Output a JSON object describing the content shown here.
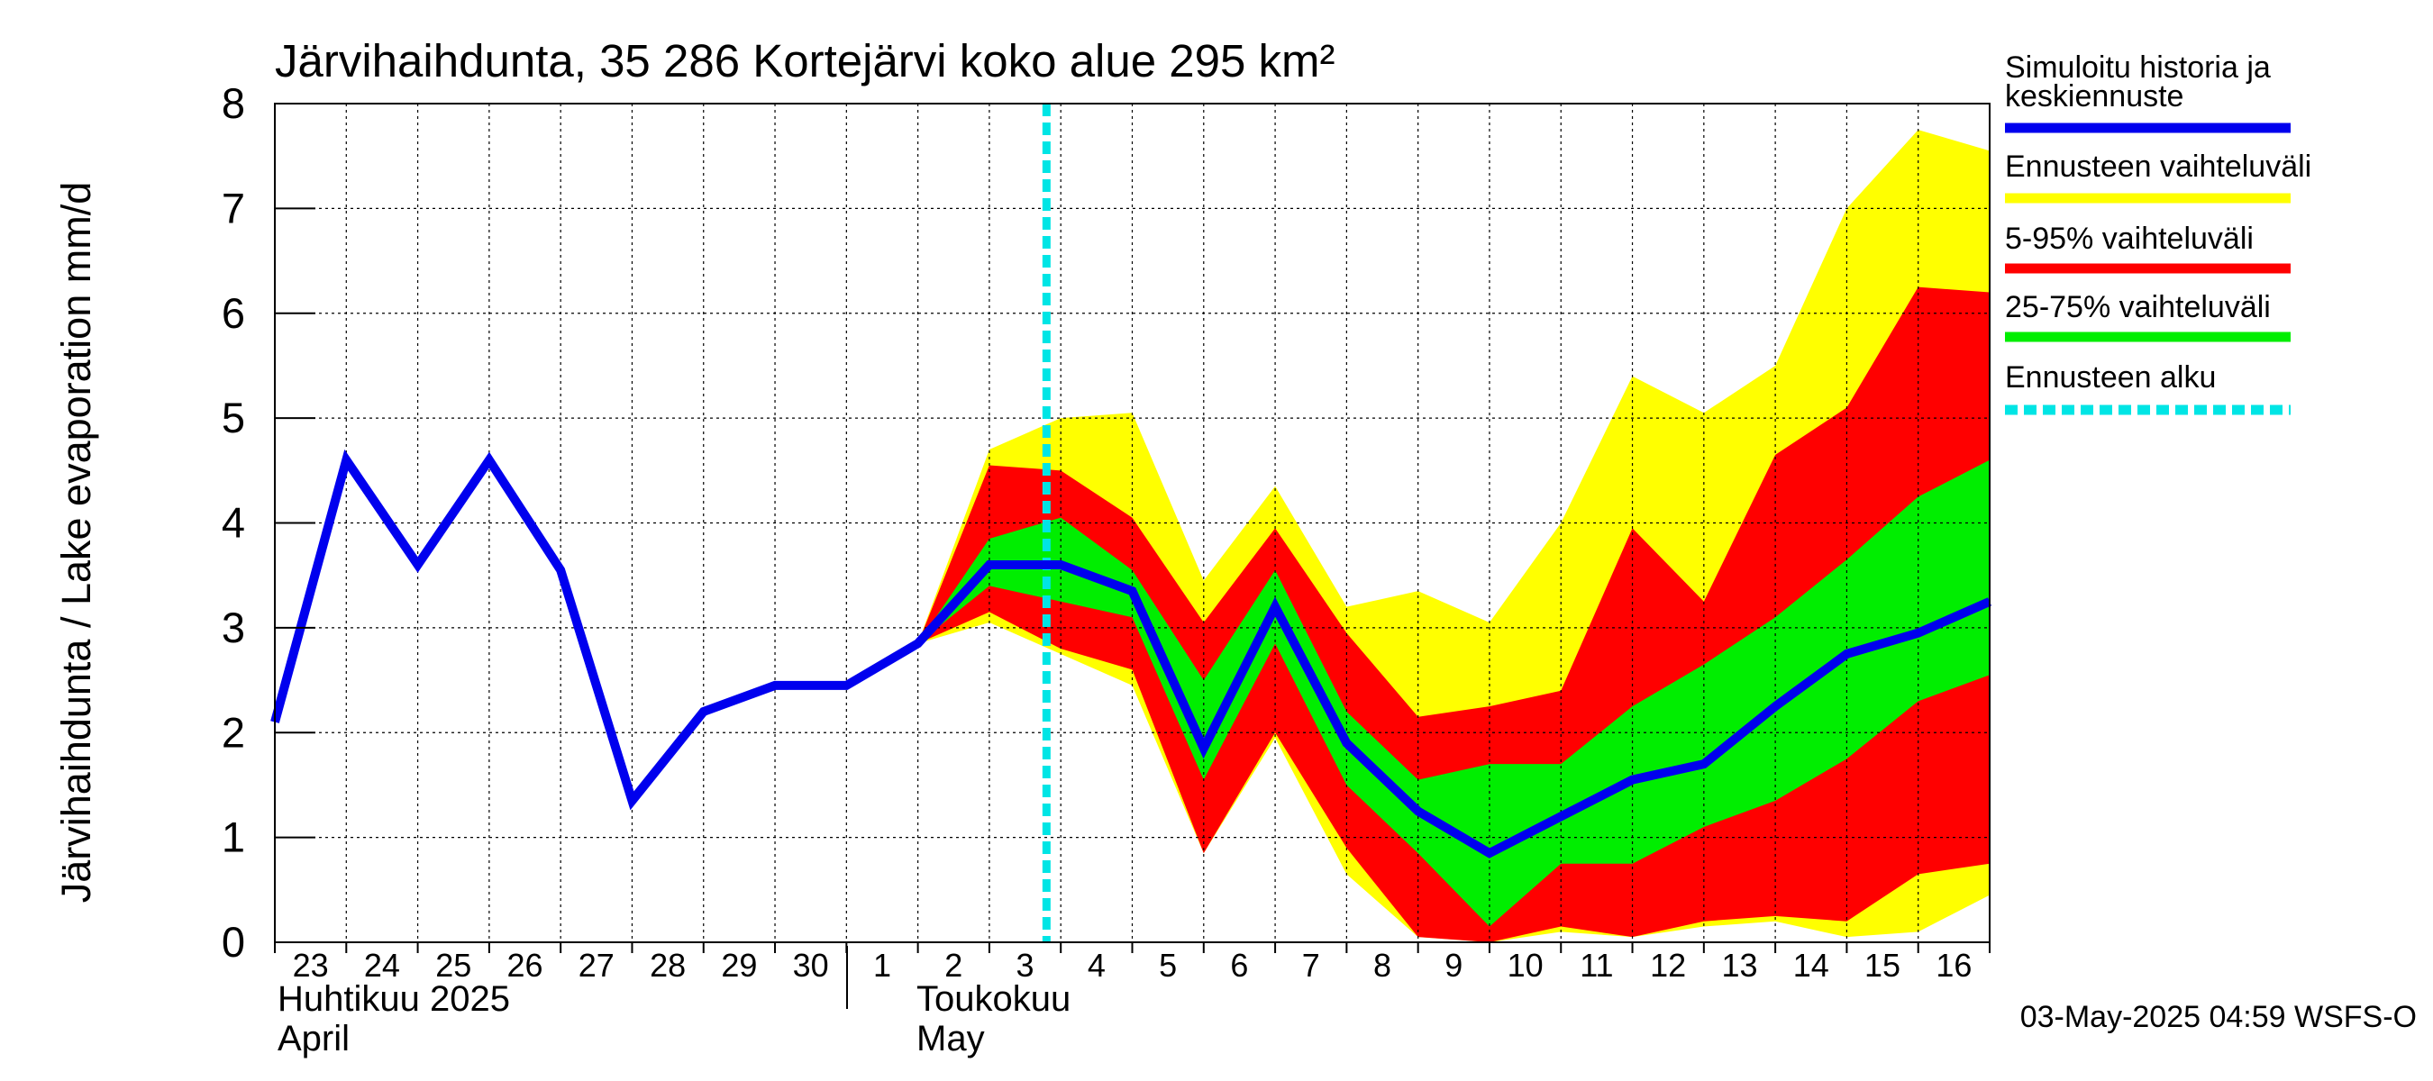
{
  "chart_data": {
    "type": "area",
    "title": "Järvihaihdunta, 35 286 Kortejärvi koko alue 295 km²",
    "ylabel": "Järvihaihdunta / Lake evaporation   mm/d",
    "ylim": [
      0,
      8
    ],
    "yticks": [
      "0",
      "1",
      "2",
      "3",
      "4",
      "5",
      "6",
      "7",
      "8"
    ],
    "x_day_labels": [
      "23",
      "24",
      "25",
      "26",
      "27",
      "28",
      "29",
      "30",
      "1",
      "2",
      "3",
      "4",
      "5",
      "6",
      "7",
      "8",
      "9",
      "10",
      "11",
      "12",
      "13",
      "14",
      "15",
      "16"
    ],
    "month_labels": {
      "april_fi": "Huhtikuu  2025",
      "april_en": "April",
      "may_fi": "Toukokuu",
      "may_en": "May"
    },
    "forecast_start_day": 10.8,
    "series": [
      {
        "name": "Simuloitu historia ja keskiennuste",
        "color": "#0000ee",
        "x": [
          0,
          1,
          2,
          3,
          4,
          5,
          6,
          7,
          8,
          9,
          10,
          11,
          12,
          13,
          14,
          15,
          16,
          17,
          18,
          19,
          20,
          21,
          22,
          23,
          24
        ],
        "values": [
          2.1,
          4.6,
          3.6,
          4.6,
          3.55,
          1.35,
          2.2,
          2.45,
          2.45,
          2.85,
          3.6,
          3.6,
          3.35,
          1.85,
          3.2,
          1.9,
          1.25,
          0.85,
          1.2,
          1.55,
          1.7,
          2.25,
          2.75,
          2.95,
          3.25
        ]
      }
    ],
    "bands": [
      {
        "name": "Ennusteen vaihteluväli",
        "color": "#ffff00",
        "x": [
          9,
          10,
          11,
          12,
          13,
          14,
          15,
          16,
          17,
          18,
          19,
          20,
          21,
          22,
          23,
          24
        ],
        "upper": [
          2.85,
          4.7,
          5.0,
          5.05,
          3.45,
          4.35,
          3.2,
          3.35,
          3.05,
          4.0,
          5.4,
          5.05,
          5.5,
          7.0,
          7.75,
          7.55
        ],
        "lower": [
          2.85,
          3.05,
          2.75,
          2.45,
          0.85,
          1.95,
          0.65,
          0.05,
          0.0,
          0.1,
          0.05,
          0.15,
          0.2,
          0.05,
          0.1,
          0.45
        ]
      },
      {
        "name": "5-95% vaihteluväli",
        "color": "#ff0000",
        "x": [
          9,
          10,
          11,
          12,
          13,
          14,
          15,
          16,
          17,
          18,
          19,
          20,
          21,
          22,
          23,
          24
        ],
        "upper": [
          2.85,
          4.55,
          4.5,
          4.05,
          3.05,
          3.95,
          2.95,
          2.15,
          2.25,
          2.4,
          3.95,
          3.25,
          4.65,
          5.1,
          6.25,
          6.2
        ],
        "lower": [
          2.85,
          3.15,
          2.8,
          2.6,
          0.85,
          2.0,
          0.9,
          0.05,
          0.0,
          0.15,
          0.05,
          0.2,
          0.25,
          0.2,
          0.65,
          0.75
        ]
      },
      {
        "name": "25-75% vaihteluväli",
        "color": "#00ee00",
        "x": [
          9,
          10,
          11,
          12,
          13,
          14,
          15,
          16,
          17,
          18,
          19,
          20,
          21,
          22,
          23,
          24
        ],
        "upper": [
          2.85,
          3.85,
          4.05,
          3.55,
          2.5,
          3.55,
          2.2,
          1.55,
          1.7,
          1.7,
          2.25,
          2.65,
          3.1,
          3.65,
          4.25,
          4.6
        ],
        "lower": [
          2.85,
          3.4,
          3.25,
          3.1,
          1.55,
          2.85,
          1.5,
          0.85,
          0.15,
          0.75,
          0.75,
          1.1,
          1.35,
          1.75,
          2.3,
          2.55
        ]
      }
    ],
    "legend": {
      "placement": "right",
      "items": [
        {
          "label": "Simuloitu historia ja keskiennuste",
          "color": "#0000ee",
          "style": "line"
        },
        {
          "label": "Ennusteen vaihteluväli",
          "color": "#ffff00",
          "style": "line"
        },
        {
          "label": "5-95% vaihteluväli",
          "color": "#ff0000",
          "style": "line"
        },
        {
          "label": "25-75% vaihteluväli",
          "color": "#00ee00",
          "style": "line"
        },
        {
          "label": "Ennusteen alku",
          "color": "#00e5e5",
          "style": "dashed"
        }
      ]
    },
    "grid": true,
    "footer": "03-May-2025 04:59 WSFS-O"
  }
}
